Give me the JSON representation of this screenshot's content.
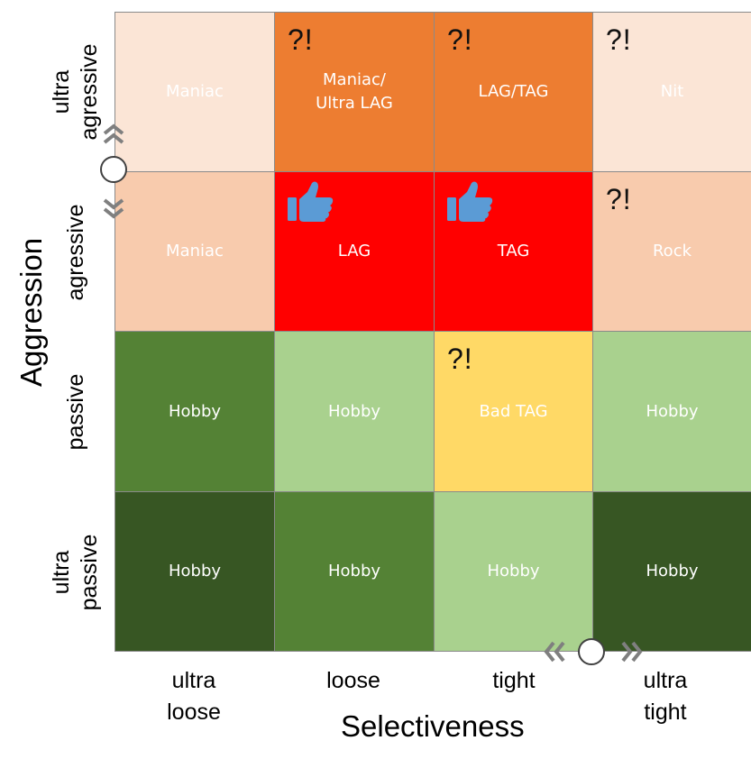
{
  "axes": {
    "x_title": "Selectiveness",
    "y_title": "Aggression",
    "columns": [
      "ultra\nloose",
      "loose",
      "tight",
      "ultra\ntight"
    ],
    "rows": [
      "ultra\nagressive",
      "agressive",
      "passive",
      "ultra\npassive"
    ]
  },
  "cells": [
    {
      "label": "Maniac",
      "bg": "#FBE5D6",
      "mark": "",
      "thumb": false
    },
    {
      "label": "Maniac/\nUltra LAG",
      "bg": "#ED7D31",
      "mark": "?!",
      "thumb": false
    },
    {
      "label": "LAG/TAG",
      "bg": "#ED7D31",
      "mark": "?!",
      "thumb": false
    },
    {
      "label": "Nit",
      "bg": "#FBE5D6",
      "mark": "?!",
      "thumb": false
    },
    {
      "label": "Maniac",
      "bg": "#F8CBAD",
      "mark": "",
      "thumb": false
    },
    {
      "label": "LAG",
      "bg": "#FF0000",
      "mark": "",
      "thumb": true
    },
    {
      "label": "TAG",
      "bg": "#FF0000",
      "mark": "",
      "thumb": true
    },
    {
      "label": "Rock",
      "bg": "#F8CBAD",
      "mark": "?!",
      "thumb": false
    },
    {
      "label": "Hobby",
      "bg": "#548235",
      "mark": "",
      "thumb": false
    },
    {
      "label": "Hobby",
      "bg": "#A9D18E",
      "mark": "",
      "thumb": false
    },
    {
      "label": "Bad TAG",
      "bg": "#FFD966",
      "mark": "?!",
      "thumb": false
    },
    {
      "label": "Hobby",
      "bg": "#A9D18E",
      "mark": "",
      "thumb": false
    },
    {
      "label": "Hobby",
      "bg": "#375623",
      "mark": "",
      "thumb": false
    },
    {
      "label": "Hobby",
      "bg": "#548235",
      "mark": "",
      "thumb": false
    },
    {
      "label": "Hobby",
      "bg": "#A9D18E",
      "mark": "",
      "thumb": false
    },
    {
      "label": "Hobby",
      "bg": "#375623",
      "mark": "",
      "thumb": false
    }
  ],
  "colors": {
    "thumb": "#5B9BD5",
    "control_chevron": "#7F7F7F",
    "border": "#8A8A8A"
  },
  "icons": {
    "thumb": "thumbs-up-icon",
    "vertical_control": "vertical-slider-handle-icon",
    "horizontal_control": "horizontal-slider-handle-icon"
  }
}
